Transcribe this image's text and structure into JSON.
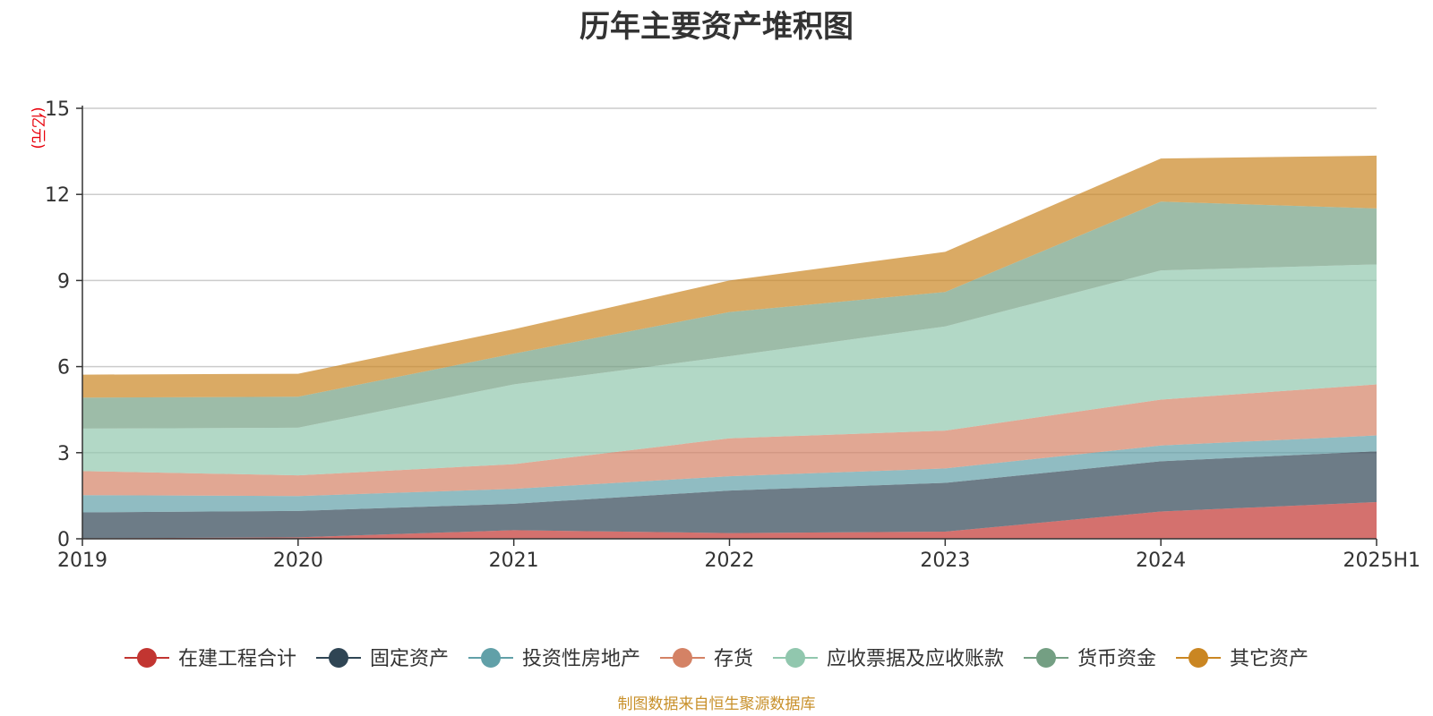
{
  "chart_data": {
    "type": "area",
    "stacked": true,
    "title": "历年主要资产堆积图",
    "unit_label": "(亿元)",
    "x": [
      "2019",
      "2020",
      "2021",
      "2022",
      "2023",
      "2024",
      "2025H1"
    ],
    "ylim": [
      0,
      15
    ],
    "yticks": [
      0,
      3,
      6,
      9,
      12,
      15
    ],
    "grid": true,
    "legend_position": "bottom",
    "series": [
      {
        "name": "在建工程合计",
        "color": "#c23531",
        "values": [
          0.02,
          0.05,
          0.3,
          0.2,
          0.25,
          0.95,
          1.28
        ]
      },
      {
        "name": "固定资产",
        "color": "#2f4554",
        "values": [
          0.9,
          0.92,
          0.92,
          1.48,
          1.7,
          1.75,
          1.77
        ]
      },
      {
        "name": "投资性房地产",
        "color": "#61a0a8",
        "values": [
          0.6,
          0.52,
          0.52,
          0.5,
          0.5,
          0.55,
          0.55
        ]
      },
      {
        "name": "存货",
        "color": "#d48265",
        "values": [
          0.84,
          0.72,
          0.86,
          1.32,
          1.32,
          1.6,
          1.78
        ]
      },
      {
        "name": "应收票据及应收账款",
        "color": "#91c7ae",
        "values": [
          1.48,
          1.66,
          2.78,
          2.86,
          3.63,
          4.5,
          4.18
        ]
      },
      {
        "name": "货币资金",
        "color": "#749f83",
        "values": [
          1.08,
          1.08,
          1.07,
          1.54,
          1.2,
          2.4,
          1.95
        ]
      },
      {
        "name": "其它资产",
        "color": "#ca8622",
        "values": [
          0.8,
          0.8,
          0.85,
          1.1,
          1.4,
          1.5,
          1.84
        ]
      }
    ]
  },
  "source_note": "制图数据来自恒生聚源数据库"
}
